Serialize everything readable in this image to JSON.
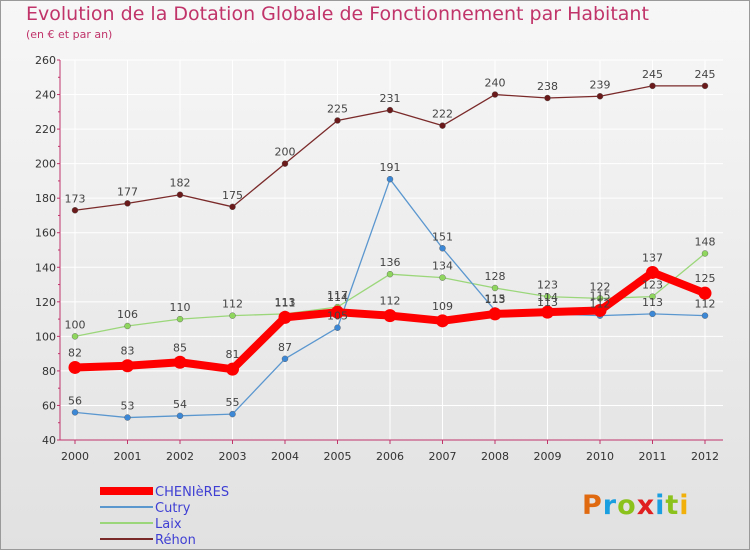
{
  "header": {
    "title": "Evolution de la Dotation Globale de Fonctionnement par Habitant",
    "subtitle": "(en € et par an)"
  },
  "logo": {
    "text": "Proxiti"
  },
  "colors": {
    "axis_pink": "#c0346a",
    "grid": "#ffffff",
    "logo_letters": [
      "#e06a10",
      "#1a9fe0",
      "#8bc21c",
      "#e02020",
      "#1a9fe0",
      "#8bc21c",
      "#f2b10a"
    ]
  },
  "chart_data": {
    "type": "line",
    "title": "Evolution de la Dotation Globale de Fonctionnement par Habitant",
    "subtitle": "(en € et par an)",
    "xlabel": "",
    "ylabel": "",
    "x": [
      "2000",
      "2001",
      "2002",
      "2003",
      "2004",
      "2005",
      "2006",
      "2007",
      "2008",
      "2009",
      "2010",
      "2011",
      "2012"
    ],
    "ylim": [
      40,
      260
    ],
    "yticks": [
      40,
      60,
      80,
      100,
      120,
      140,
      160,
      180,
      200,
      220,
      240,
      260
    ],
    "grid": true,
    "legend_position": "bottom-left",
    "series": [
      {
        "name": "Réhon",
        "color": "#7b2a2a",
        "marker": "#6a1a1a",
        "thick": false,
        "values": [
          173,
          177,
          182,
          175,
          200,
          225,
          231,
          222,
          240,
          238,
          239,
          245,
          245
        ],
        "labels": [
          "173",
          "177",
          "182",
          "175",
          "200",
          "225",
          "231",
          "222",
          "240",
          "238",
          "239",
          "245",
          "245"
        ]
      },
      {
        "name": "Laix",
        "color": "#9bd77a",
        "marker": "#8fd65e",
        "thick": false,
        "values": [
          100,
          106,
          110,
          112,
          113,
          117,
          136,
          134,
          128,
          123,
          122,
          123,
          148
        ],
        "labels": [
          "100",
          "106",
          "110",
          "112",
          "113",
          "117",
          "136",
          "134",
          "128",
          "123",
          "122",
          "123",
          "148"
        ]
      },
      {
        "name": "Cutry",
        "color": "#5b97cf",
        "marker": "#3d88d6",
        "thick": false,
        "values": [
          56,
          53,
          54,
          55,
          87,
          105,
          191,
          151,
          115,
          113,
          112,
          113,
          112
        ],
        "labels": [
          "56",
          "53",
          "54",
          "55",
          "87",
          "105",
          "191",
          "151",
          "115",
          "113",
          "112",
          "113",
          "112"
        ]
      },
      {
        "name": "CHENIèRES",
        "color": "#ff0000",
        "marker": "#ff0000",
        "thick": true,
        "values": [
          82,
          83,
          85,
          81,
          111,
          114,
          112,
          109,
          113,
          114,
          115,
          137,
          125
        ],
        "labels": [
          "82",
          "83",
          "85",
          "81",
          "111",
          "114",
          "112",
          "109",
          "113",
          "114",
          "115",
          "137",
          "125"
        ]
      }
    ],
    "legend": [
      "CHENIèRES",
      "Cutry",
      "Laix",
      "Réhon"
    ]
  }
}
